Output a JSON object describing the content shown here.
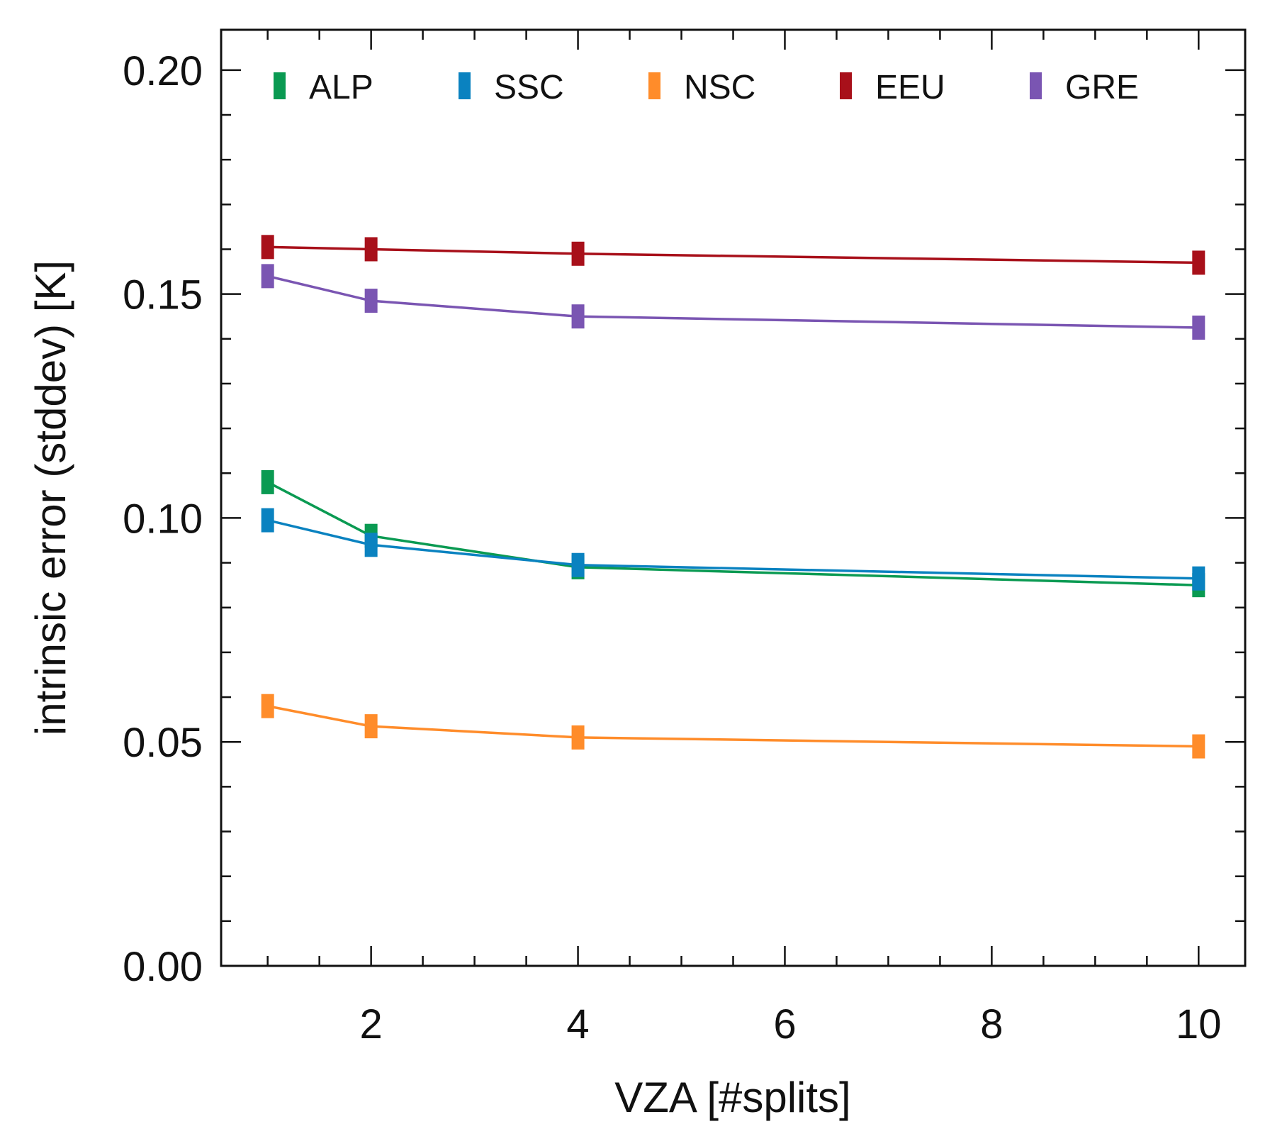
{
  "chart_data": {
    "type": "line",
    "title": "",
    "xlabel": "VZA [#splits]",
    "ylabel": "intrinsic error (stddev) [K]",
    "xlim": [
      0.55,
      10.45
    ],
    "ylim": [
      0.0,
      0.209
    ],
    "xticks": [
      2,
      4,
      6,
      8,
      10
    ],
    "xtick_labels": [
      "2",
      "4",
      "6",
      "8",
      "10"
    ],
    "yticks": [
      0.0,
      0.05,
      0.1,
      0.15,
      0.2
    ],
    "ytick_labels": [
      "0.00",
      "0.05",
      "0.10",
      "0.15",
      "0.20"
    ],
    "x": [
      1,
      2,
      4,
      10
    ],
    "grid": false,
    "legend_position": "top",
    "series": [
      {
        "name": "ALP",
        "color": "#0a9a52",
        "values": [
          0.108,
          0.096,
          0.089,
          0.085
        ]
      },
      {
        "name": "SSC",
        "color": "#0a82c0",
        "values": [
          0.0995,
          0.094,
          0.0895,
          0.0865
        ]
      },
      {
        "name": "NSC",
        "color": "#ff8c2a",
        "values": [
          0.058,
          0.0535,
          0.051,
          0.049
        ]
      },
      {
        "name": "EEU",
        "color": "#a8101a",
        "values": [
          0.1605,
          0.16,
          0.159,
          0.157
        ]
      },
      {
        "name": "GRE",
        "color": "#7a55b2",
        "values": [
          0.154,
          0.1485,
          0.145,
          0.1425
        ]
      }
    ]
  }
}
